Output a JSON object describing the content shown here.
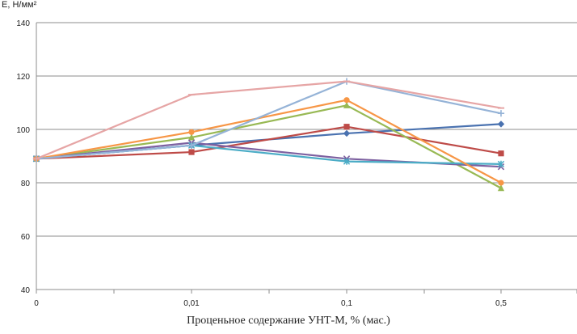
{
  "chart_data": {
    "type": "line",
    "xlabel": "Проценьное содержание УНТ-М, % (мас.)",
    "ylabel": "E, Н/мм²",
    "categories": [
      "0",
      "0,01",
      "0,1",
      "0,5"
    ],
    "ylim": [
      40,
      140
    ],
    "yticks": [
      "40",
      "60",
      "80",
      "100",
      "120",
      "140"
    ],
    "grid": "horizontal",
    "legend": "none",
    "series": [
      {
        "color": "#4a72b0",
        "marker": "diamond",
        "values": [
          89,
          94,
          98.5,
          102
        ]
      },
      {
        "color": "#be4b48",
        "marker": "square",
        "values": [
          89,
          91.5,
          101,
          91
        ]
      },
      {
        "color": "#98b954",
        "marker": "triangle",
        "values": [
          89,
          97,
          109,
          78
        ]
      },
      {
        "color": "#7d60a0",
        "marker": "x",
        "values": [
          89,
          95,
          89,
          86
        ]
      },
      {
        "color": "#4bacc6",
        "marker": "star",
        "values": [
          89,
          94,
          88,
          87
        ]
      },
      {
        "color": "#f79646",
        "marker": "circle",
        "values": [
          89,
          99,
          111,
          80
        ]
      },
      {
        "color": "#95b3d7",
        "marker": "plus",
        "values": [
          89,
          94,
          118,
          106
        ]
      },
      {
        "color": "#e6a5a5",
        "marker": "dash",
        "values": [
          89,
          113,
          118,
          108
        ]
      }
    ]
  }
}
